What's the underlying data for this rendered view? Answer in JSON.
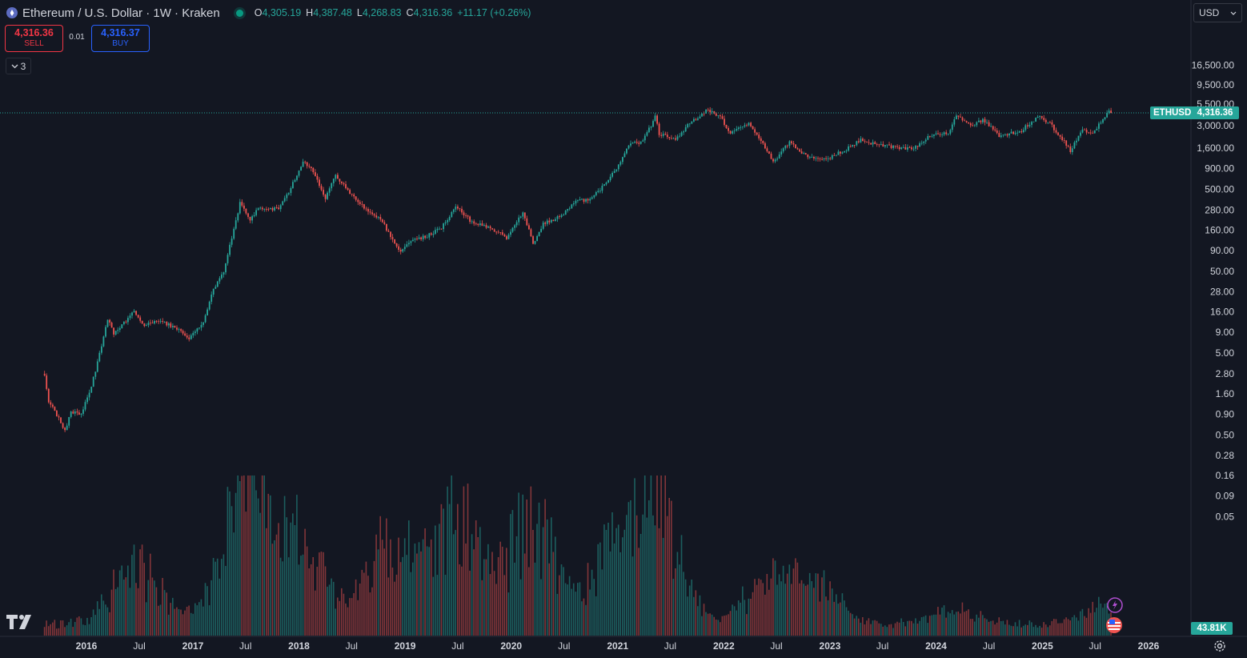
{
  "header": {
    "title": "Ethereum / U.S. Dollar · 1W · Kraken",
    "ohlc": {
      "o_label": "O",
      "o": "4,305.19",
      "h_label": "H",
      "h": "4,387.48",
      "l_label": "L",
      "l": "4,268.83",
      "c_label": "C",
      "c": "4,316.36",
      "change": "+11.17 (+0.26%)"
    }
  },
  "trading": {
    "sell_price": "4,316.36",
    "sell_label": "SELL",
    "spread": "0.01",
    "buy_price": "4,316.37",
    "buy_label": "BUY"
  },
  "collapse_count": "3",
  "currency": "USD",
  "price_tag": {
    "symbol": "ETHUSD",
    "value": "4,316.36"
  },
  "volume_tag": "43.81K",
  "colors": {
    "background": "#131722",
    "up": "#26a69a",
    "down": "#ef5350",
    "grid": "#1e222d",
    "text": "#d1d4dc"
  },
  "chart_data": {
    "type": "candlestick",
    "scale": "log",
    "grid": false,
    "y_ticks": [
      {
        "label": "16,500.00",
        "value": 16500
      },
      {
        "label": "9,500.00",
        "value": 9500
      },
      {
        "label": "5,500.00",
        "value": 5500
      },
      {
        "label": "3,000.00",
        "value": 3000
      },
      {
        "label": "1,600.00",
        "value": 1600
      },
      {
        "label": "900.00",
        "value": 900
      },
      {
        "label": "500.00",
        "value": 500
      },
      {
        "label": "280.00",
        "value": 280
      },
      {
        "label": "160.00",
        "value": 160
      },
      {
        "label": "90.00",
        "value": 90
      },
      {
        "label": "50.00",
        "value": 50
      },
      {
        "label": "28.00",
        "value": 28
      },
      {
        "label": "16.00",
        "value": 16
      },
      {
        "label": "9.00",
        "value": 9
      },
      {
        "label": "5.00",
        "value": 5
      },
      {
        "label": "2.80",
        "value": 2.8
      },
      {
        "label": "1.60",
        "value": 1.6
      },
      {
        "label": "0.90",
        "value": 0.9
      },
      {
        "label": "0.50",
        "value": 0.5
      },
      {
        "label": "0.28",
        "value": 0.28
      },
      {
        "label": "0.16",
        "value": 0.16
      },
      {
        "label": "0.09",
        "value": 0.09
      },
      {
        "label": "0.05",
        "value": 0.05
      }
    ],
    "x_ticks": [
      {
        "label": "2016",
        "date": "2016-01-01",
        "bold": true
      },
      {
        "label": "Jul",
        "date": "2016-07-01",
        "bold": false
      },
      {
        "label": "2017",
        "date": "2017-01-01",
        "bold": true
      },
      {
        "label": "Jul",
        "date": "2017-07-01",
        "bold": false
      },
      {
        "label": "2018",
        "date": "2018-01-01",
        "bold": true
      },
      {
        "label": "Jul",
        "date": "2018-07-01",
        "bold": false
      },
      {
        "label": "2019",
        "date": "2019-01-01",
        "bold": true
      },
      {
        "label": "Jul",
        "date": "2019-07-01",
        "bold": false
      },
      {
        "label": "2020",
        "date": "2020-01-01",
        "bold": true
      },
      {
        "label": "Jul",
        "date": "2020-07-01",
        "bold": false
      },
      {
        "label": "2021",
        "date": "2021-01-01",
        "bold": true
      },
      {
        "label": "Jul",
        "date": "2021-07-01",
        "bold": false
      },
      {
        "label": "2022",
        "date": "2022-01-01",
        "bold": true
      },
      {
        "label": "Jul",
        "date": "2022-07-01",
        "bold": false
      },
      {
        "label": "2023",
        "date": "2023-01-01",
        "bold": true
      },
      {
        "label": "Jul",
        "date": "2023-07-01",
        "bold": false
      },
      {
        "label": "2024",
        "date": "2024-01-01",
        "bold": true
      },
      {
        "label": "Jul",
        "date": "2024-07-01",
        "bold": false
      },
      {
        "label": "2025",
        "date": "2025-01-01",
        "bold": true
      },
      {
        "label": "Jul",
        "date": "2025-07-01",
        "bold": false
      },
      {
        "label": "2026",
        "date": "2026-01-01",
        "bold": true
      }
    ],
    "close_path": [
      [
        "2015-08-10",
        2.8
      ],
      [
        "2015-08-24",
        1.3
      ],
      [
        "2015-09-14",
        1.0
      ],
      [
        "2015-10-19",
        0.55
      ],
      [
        "2015-11-09",
        0.95
      ],
      [
        "2015-12-14",
        0.9
      ],
      [
        "2016-01-18",
        2.0
      ],
      [
        "2016-02-22",
        6.0
      ],
      [
        "2016-03-14",
        13.0
      ],
      [
        "2016-04-04",
        8.5
      ],
      [
        "2016-06-13",
        16.0
      ],
      [
        "2016-07-18",
        11.0
      ],
      [
        "2016-09-12",
        12.5
      ],
      [
        "2016-11-07",
        10.0
      ],
      [
        "2016-12-19",
        7.5
      ],
      [
        "2017-02-06",
        11.5
      ],
      [
        "2017-03-13",
        30.0
      ],
      [
        "2017-04-17",
        50.0
      ],
      [
        "2017-05-22",
        160.0
      ],
      [
        "2017-06-12",
        340.0
      ],
      [
        "2017-07-17",
        210.0
      ],
      [
        "2017-08-14",
        300.0
      ],
      [
        "2017-09-18",
        280.0
      ],
      [
        "2017-10-23",
        300.0
      ],
      [
        "2017-11-27",
        470.0
      ],
      [
        "2017-12-25",
        750.0
      ],
      [
        "2018-01-15",
        1100.0
      ],
      [
        "2018-02-19",
        850.0
      ],
      [
        "2018-04-02",
        380.0
      ],
      [
        "2018-05-07",
        750.0
      ],
      [
        "2018-06-25",
        450.0
      ],
      [
        "2018-08-20",
        280.0
      ],
      [
        "2018-10-08",
        220.0
      ],
      [
        "2018-11-26",
        110.0
      ],
      [
        "2018-12-17",
        88.0
      ],
      [
        "2019-01-21",
        120.0
      ],
      [
        "2019-03-18",
        135.0
      ],
      [
        "2019-05-06",
        170.0
      ],
      [
        "2019-06-24",
        310.0
      ],
      [
        "2019-08-19",
        200.0
      ],
      [
        "2019-10-14",
        175.0
      ],
      [
        "2019-12-16",
        130.0
      ],
      [
        "2020-02-10",
        260.0
      ],
      [
        "2020-03-16",
        110.0
      ],
      [
        "2020-04-20",
        190.0
      ],
      [
        "2020-06-15",
        230.0
      ],
      [
        "2020-08-17",
        380.0
      ],
      [
        "2020-09-21",
        360.0
      ],
      [
        "2020-11-23",
        600.0
      ],
      [
        "2021-01-04",
        1000.0
      ],
      [
        "2021-02-15",
        1900.0
      ],
      [
        "2021-03-15",
        1800.0
      ],
      [
        "2021-04-12",
        2400.0
      ],
      [
        "2021-05-10",
        3900.0
      ],
      [
        "2021-05-24",
        2400.0
      ],
      [
        "2021-07-19",
        2000.0
      ],
      [
        "2021-09-06",
        3300.0
      ],
      [
        "2021-11-08",
        4700.0
      ],
      [
        "2021-12-20",
        3900.0
      ],
      [
        "2022-01-24",
        2400.0
      ],
      [
        "2022-03-28",
        3300.0
      ],
      [
        "2022-05-09",
        2000.0
      ],
      [
        "2022-06-20",
        1050.0
      ],
      [
        "2022-08-15",
        1900.0
      ],
      [
        "2022-10-10",
        1300.0
      ],
      [
        "2022-11-14",
        1200.0
      ],
      [
        "2022-12-26",
        1200.0
      ],
      [
        "2023-03-06",
        1600.0
      ],
      [
        "2023-04-17",
        2000.0
      ],
      [
        "2023-06-19",
        1750.0
      ],
      [
        "2023-08-21",
        1650.0
      ],
      [
        "2023-10-16",
        1550.0
      ],
      [
        "2023-12-04",
        2200.0
      ],
      [
        "2024-02-12",
        2500.0
      ],
      [
        "2024-03-11",
        3900.0
      ],
      [
        "2024-05-06",
        3000.0
      ],
      [
        "2024-06-10",
        3600.0
      ],
      [
        "2024-08-05",
        2300.0
      ],
      [
        "2024-10-14",
        2500.0
      ],
      [
        "2024-12-16",
        3900.0
      ],
      [
        "2025-01-27",
        3200.0
      ],
      [
        "2025-03-03",
        2200.0
      ],
      [
        "2025-04-07",
        1500.0
      ],
      [
        "2025-05-19",
        2600.0
      ],
      [
        "2025-06-23",
        2400.0
      ],
      [
        "2025-08-11",
        4300.0
      ],
      [
        "2025-08-18",
        4800.0
      ],
      [
        "2025-08-25",
        4316.36
      ]
    ],
    "volume_peaks": [
      [
        "2016-06-20",
        6.0
      ],
      [
        "2017-06-12",
        8.5
      ],
      [
        "2017-08-14",
        8.5
      ],
      [
        "2018-01-15",
        7.0
      ],
      [
        "2018-11-19",
        9.0
      ],
      [
        "2019-06-24",
        11.0
      ],
      [
        "2020-03-16",
        11.0
      ],
      [
        "2021-01-11",
        9.0
      ],
      [
        "2021-05-17",
        10.5
      ],
      [
        "2022-06-13",
        5.0
      ],
      [
        "2022-11-07",
        4.5
      ],
      [
        "2024-03-11",
        1.6
      ],
      [
        "2025-08-11",
        1.8
      ]
    ],
    "current_price": 4316.36
  }
}
